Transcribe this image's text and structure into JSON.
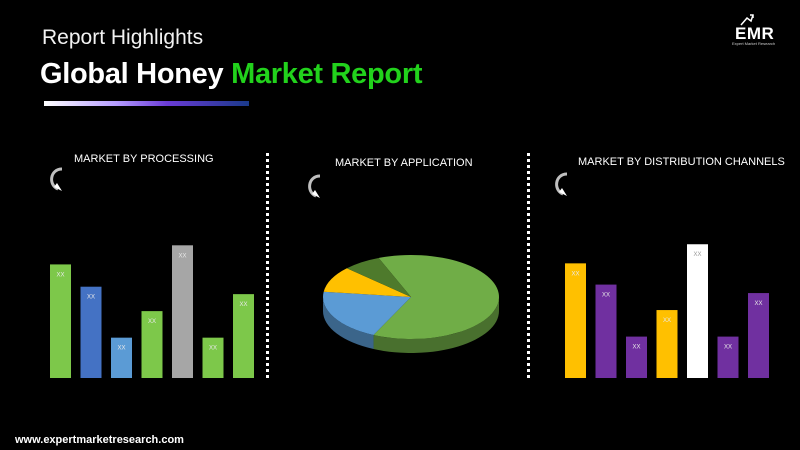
{
  "header": {
    "subtitle": "Report Highlights",
    "title_main": "Global Honey",
    "title_accent": "Market Report"
  },
  "logo": {
    "text": "EMR",
    "tagline": "Expert Market Research"
  },
  "icons": {
    "refresh": "circular-arrow-icon"
  },
  "colors": {
    "accent": "#22d21c",
    "green": "#7dc84a",
    "blue": "#4472c4",
    "gray": "#a6a6a6",
    "yellow": "#ffc000",
    "purple": "#7030a0",
    "white": "#ffffff"
  },
  "panels": {
    "processing": {
      "title": "MARKET BY PROCESSING"
    },
    "application": {
      "title": "MARKET BY APPLICATION"
    },
    "distribution": {
      "title": "MARKET BY DISTRIBUTION CHANNELS"
    }
  },
  "chart_data": [
    {
      "type": "bar",
      "title": "MARKET BY PROCESSING",
      "values": [
        107,
        86,
        38,
        63,
        125,
        38,
        79
      ],
      "labels": [
        "XX",
        "XX",
        "XX",
        "XX",
        "XX",
        "XX",
        "XX"
      ],
      "colors": [
        "#7dc84a",
        "#4472c4",
        "#5b9bd5",
        "#7dc84a",
        "#a6a6a6",
        "#7dc84a",
        "#7dc84a"
      ],
      "ylim": [
        0,
        130
      ]
    },
    {
      "type": "pie",
      "title": "MARKET BY APPLICATION",
      "values": [
        63,
        20,
        10,
        7
      ],
      "colors": [
        "#70ad47",
        "#5b9bd5",
        "#ffc000",
        "#4e7a2c"
      ]
    },
    {
      "type": "bar",
      "title": "MARKET BY DISTRIBUTION CHANNELS",
      "values": [
        108,
        88,
        39,
        64,
        126,
        39,
        80
      ],
      "labels": [
        "XX",
        "XX",
        "XX",
        "XX",
        "XX",
        "XX",
        "XX"
      ],
      "colors": [
        "#ffc000",
        "#7030a0",
        "#7030a0",
        "#ffc000",
        "#ffffff",
        "#7030a0",
        "#7030a0"
      ],
      "ylim": [
        0,
        130
      ]
    }
  ],
  "footer": {
    "url": "www.expertmarketresearch.com"
  }
}
